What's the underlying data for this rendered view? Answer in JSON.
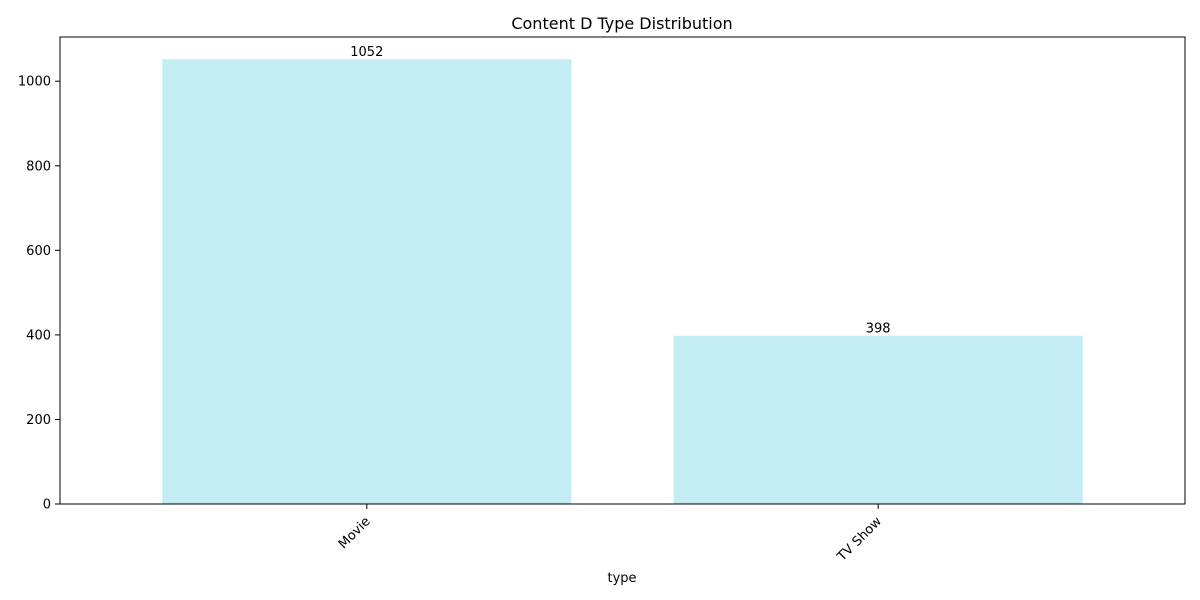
{
  "chart_data": {
    "type": "bar",
    "title": "Content D Type Distribution",
    "xlabel": "type",
    "ylabel": "",
    "categories": [
      "Movie",
      "TV Show"
    ],
    "values": [
      1052,
      398
    ],
    "value_labels": [
      "1052",
      "398"
    ],
    "ylim": [
      0,
      1104.6
    ],
    "yticks": [
      0,
      200,
      400,
      600,
      800,
      1000
    ],
    "bar_color": "#c4edf4",
    "x_tick_rotation": 45,
    "grid": false,
    "legend": false
  }
}
